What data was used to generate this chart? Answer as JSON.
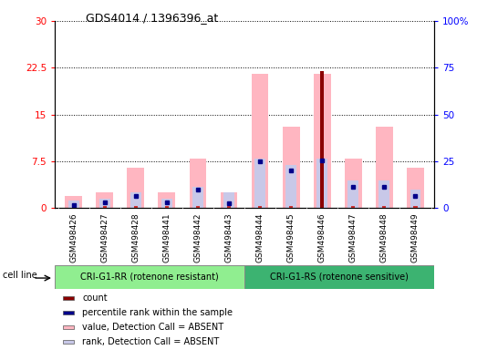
{
  "title": "GDS4014 / 1396396_at",
  "samples": [
    "GSM498426",
    "GSM498427",
    "GSM498428",
    "GSM498441",
    "GSM498442",
    "GSM498443",
    "GSM498444",
    "GSM498445",
    "GSM498446",
    "GSM498447",
    "GSM498448",
    "GSM498449"
  ],
  "group1_count": 6,
  "group1_label": "CRI-G1-RR (rotenone resistant)",
  "group2_label": "CRI-G1-RS (rotenone sensitive)",
  "group1_color": "#90ee90",
  "group2_color": "#3cb371",
  "cell_line_label": "cell line",
  "value_pink": [
    2.0,
    2.5,
    6.5,
    2.5,
    8.0,
    2.5,
    21.5,
    13.0,
    21.5,
    8.0,
    13.0,
    6.5
  ],
  "rank_lavender": [
    1.2,
    1.5,
    2.5,
    1.5,
    3.5,
    2.5,
    8.0,
    7.0,
    8.0,
    4.5,
    4.5,
    3.0
  ],
  "count_red": [
    0.4,
    0.4,
    0.4,
    0.4,
    0.4,
    0.4,
    0.4,
    0.4,
    22.0,
    0.4,
    0.4,
    0.4
  ],
  "percentile_blue": [
    0.5,
    1.0,
    2.0,
    1.0,
    3.0,
    0.8,
    7.5,
    6.0,
    7.7,
    3.5,
    3.5,
    2.0
  ],
  "highlight_sample": "GSM498446",
  "ylim_left": [
    0,
    30
  ],
  "ylim_right": [
    0,
    100
  ],
  "yticks_left": [
    0,
    7.5,
    15,
    22.5,
    30
  ],
  "yticks_right": [
    0,
    25,
    50,
    75,
    100
  ],
  "ytick_labels_left": [
    "0",
    "7.5",
    "15",
    "22.5",
    "30"
  ],
  "ytick_labels_right": [
    "0",
    "25",
    "50",
    "75",
    "100%"
  ],
  "color_count_highlight": "#8b0000",
  "color_count_normal": "#cc3333",
  "color_percentile": "#00008b",
  "color_value_absent": "#ffb6c1",
  "color_rank_absent": "#c8c8e8",
  "gray_bg": "#d0d0d0"
}
